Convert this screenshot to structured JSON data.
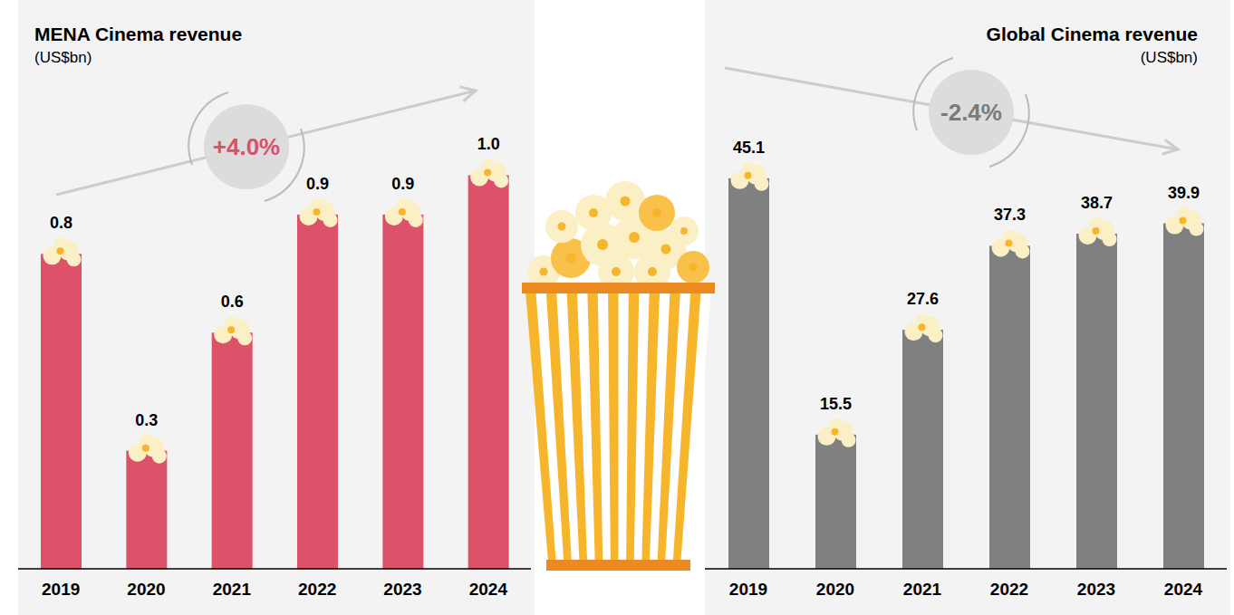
{
  "chart_data": [
    {
      "type": "bar",
      "title": "MENA Cinema revenue",
      "subtitle": "(US$bn)",
      "annotation": "+4.0%",
      "categories": [
        "2019",
        "2020",
        "2021",
        "2022",
        "2023",
        "2024"
      ],
      "values": [
        0.8,
        0.3,
        0.6,
        0.9,
        0.9,
        1.0
      ],
      "value_labels": [
        "0.8",
        "0.3",
        "0.6",
        "0.9",
        "0.9",
        "1.0"
      ],
      "color": "#dc5369",
      "ylim": [
        0,
        1.1
      ],
      "data_labels": true,
      "tick_labels": "x",
      "grid": false
    },
    {
      "type": "bar",
      "title": "Global Cinema revenue",
      "subtitle": "(US$bn)",
      "annotation": "-2.4%",
      "categories": [
        "2019",
        "2020",
        "2021",
        "2022",
        "2023",
        "2024"
      ],
      "values": [
        45.1,
        15.5,
        27.6,
        37.3,
        38.7,
        39.9
      ],
      "color": "#808080",
      "ylim": [
        0,
        50
      ],
      "data_labels": true,
      "tick_labels": "x",
      "grid": false
    }
  ]
}
